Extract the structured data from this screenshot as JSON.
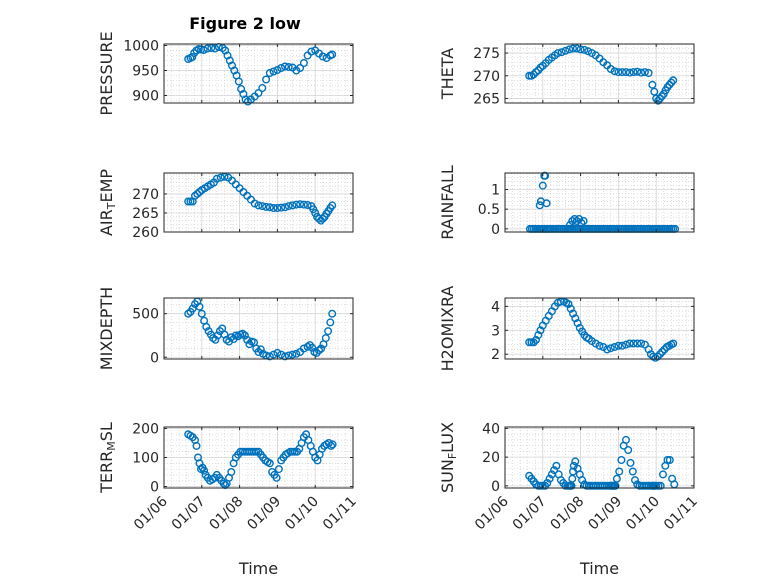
{
  "figure": {
    "title": "Figure 2 low",
    "marker_color": "#0072BD",
    "x_tick_labels": [
      "01/06",
      "01/07",
      "01/08",
      "01/09",
      "01/10",
      "01/11"
    ]
  },
  "chart_data": [
    {
      "type": "scatter",
      "ylabel": "PRESSURE",
      "xlabel": "",
      "title": "Figure 2 low",
      "x_range": [
        0,
        5
      ],
      "ylim": [
        885,
        1003
      ],
      "y_ticks": [
        900,
        950,
        1000
      ],
      "grid": true,
      "x": [
        0.64,
        0.7,
        0.75,
        0.8,
        0.86,
        0.92,
        0.98,
        1.05,
        1.15,
        1.25,
        1.35,
        1.45,
        1.55,
        1.62,
        1.68,
        1.74,
        1.8,
        1.86,
        1.92,
        1.98,
        2.04,
        2.1,
        2.16,
        2.22,
        2.3,
        2.4,
        2.5,
        2.6,
        2.7,
        2.8,
        2.9,
        3.0,
        3.1,
        3.2,
        3.3,
        3.4,
        3.5,
        3.6,
        3.7,
        3.8,
        3.9,
        4.0,
        4.1,
        4.2,
        4.3,
        4.4,
        4.45
      ],
      "y": [
        973,
        975,
        977,
        985,
        990,
        993,
        992,
        991,
        994,
        995,
        994,
        997,
        995,
        990,
        980,
        970,
        960,
        950,
        940,
        928,
        913,
        903,
        892,
        888,
        892,
        898,
        905,
        915,
        932,
        945,
        948,
        951,
        955,
        958,
        957,
        956,
        950,
        955,
        965,
        980,
        988,
        990,
        984,
        978,
        975,
        980,
        982
      ]
    },
    {
      "type": "scatter",
      "ylabel": "THETA",
      "xlabel": "",
      "x_range": [
        0,
        5
      ],
      "ylim": [
        264,
        277
      ],
      "y_ticks": [
        265,
        270,
        275
      ],
      "grid": true,
      "x": [
        0.64,
        0.7,
        0.76,
        0.82,
        0.88,
        0.94,
        1.0,
        1.08,
        1.16,
        1.24,
        1.32,
        1.4,
        1.5,
        1.6,
        1.7,
        1.8,
        1.9,
        2.0,
        2.1,
        2.2,
        2.3,
        2.4,
        2.5,
        2.6,
        2.7,
        2.8,
        2.9,
        3.0,
        3.1,
        3.2,
        3.3,
        3.4,
        3.5,
        3.6,
        3.7,
        3.8,
        3.9,
        3.95,
        4.0,
        4.05,
        4.1,
        4.15,
        4.2,
        4.25,
        4.3,
        4.35,
        4.4,
        4.45
      ],
      "y": [
        270,
        270,
        270.3,
        270.8,
        271.2,
        271.8,
        272.2,
        272.8,
        273.5,
        274,
        274.5,
        275,
        275.2,
        275.5,
        275.8,
        276,
        276,
        275.8,
        275.7,
        275.4,
        275,
        274.5,
        273.8,
        273,
        272.3,
        271.5,
        271,
        270.8,
        270.8,
        270.8,
        270.7,
        270.8,
        270.9,
        270.7,
        270.8,
        270.6,
        268,
        266.5,
        265,
        264.5,
        265,
        265.5,
        266,
        266.8,
        267.5,
        268,
        268.5,
        269
      ]
    },
    {
      "type": "scatter",
      "ylabel": "AIR_TEMP",
      "xlabel": "",
      "x_range": [
        0,
        5
      ],
      "ylim": [
        260,
        275.5
      ],
      "y_ticks": [
        260,
        265,
        270
      ],
      "grid": true,
      "x": [
        0.64,
        0.7,
        0.76,
        0.82,
        0.88,
        0.94,
        1.0,
        1.08,
        1.16,
        1.24,
        1.32,
        1.4,
        1.5,
        1.6,
        1.7,
        1.8,
        1.9,
        2.0,
        2.1,
        2.2,
        2.3,
        2.4,
        2.5,
        2.6,
        2.7,
        2.8,
        2.9,
        3.0,
        3.1,
        3.2,
        3.3,
        3.4,
        3.5,
        3.6,
        3.7,
        3.8,
        3.9,
        3.95,
        4.0,
        4.05,
        4.1,
        4.15,
        4.2,
        4.25,
        4.3,
        4.35,
        4.4,
        4.45
      ],
      "y": [
        268,
        268,
        268,
        269.5,
        270,
        270.5,
        271,
        271.5,
        272,
        272.5,
        273,
        274,
        274.3,
        274.5,
        274.3,
        273.5,
        272.5,
        271.5,
        270.5,
        269.5,
        268.5,
        267.5,
        267,
        266.8,
        266.6,
        266.5,
        266.3,
        266.3,
        266.4,
        266.5,
        266.8,
        267,
        267.2,
        267.3,
        267.2,
        267.1,
        266.8,
        266,
        265,
        264,
        263.5,
        263,
        263.5,
        264,
        264.8,
        265.5,
        266.3,
        267
      ]
    },
    {
      "type": "scatter",
      "ylabel": "RAINFALL",
      "xlabel": "",
      "x_range": [
        0,
        5
      ],
      "ylim": [
        -0.08,
        1.42
      ],
      "y_ticks": [
        0,
        0.5,
        1
      ],
      "y_tick_labels": [
        "0",
        "0.5",
        "1"
      ],
      "grid": true,
      "x": [
        0.66,
        0.71,
        0.76,
        0.81,
        0.86,
        0.91,
        0.96,
        1.0,
        1.04,
        1.08,
        1.12,
        1.16,
        1.2,
        1.25,
        1.3,
        1.35,
        1.4,
        1.45,
        1.5,
        1.55,
        1.6,
        1.65,
        1.7,
        1.75,
        1.8,
        1.85,
        1.9,
        1.95,
        2.0,
        2.05,
        2.1,
        2.15,
        2.2,
        2.25,
        2.3,
        2.35,
        2.4,
        2.45,
        2.5,
        2.55,
        2.6,
        2.65,
        2.7,
        2.75,
        2.8,
        2.85,
        2.9,
        2.95,
        3.0,
        3.05,
        3.1,
        3.15,
        3.2,
        3.25,
        3.3,
        3.35,
        3.4,
        3.45,
        3.5,
        3.55,
        3.6,
        3.65,
        3.7,
        3.75,
        3.8,
        3.85,
        3.9,
        3.95,
        4.0,
        4.05,
        4.1,
        4.15,
        4.2,
        4.25,
        4.3,
        4.35,
        4.4,
        4.45,
        4.5,
        0.92,
        0.95,
        1.0,
        1.04,
        1.06,
        1.1,
        1.72,
        1.78,
        1.84,
        1.9,
        1.96,
        2.02,
        2.08
      ],
      "y": [
        0,
        0,
        0,
        0,
        0,
        0,
        0,
        0,
        0,
        0,
        0,
        0,
        0,
        0,
        0,
        0,
        0,
        0,
        0,
        0,
        0,
        0,
        0,
        0,
        0,
        0,
        0,
        0,
        0,
        0,
        0,
        0,
        0,
        0,
        0,
        0,
        0,
        0,
        0,
        0,
        0,
        0,
        0,
        0,
        0,
        0,
        0,
        0,
        0,
        0,
        0,
        0,
        0,
        0,
        0,
        0,
        0,
        0,
        0,
        0,
        0,
        0,
        0,
        0,
        0,
        0,
        0,
        0,
        0,
        0,
        0,
        0,
        0,
        0,
        0,
        0,
        0,
        0,
        0,
        0.6,
        0.7,
        1.1,
        1.35,
        1.35,
        0.65,
        0.1,
        0.2,
        0.25,
        0.2,
        0.25,
        0.15,
        0.2
      ]
    },
    {
      "type": "scatter",
      "ylabel": "MIXDEPTH",
      "xlabel": "",
      "x_range": [
        0,
        5
      ],
      "ylim": [
        -20,
        680
      ],
      "y_ticks": [
        0,
        500
      ],
      "grid": true,
      "x": [
        0.64,
        0.7,
        0.76,
        0.82,
        0.88,
        0.94,
        1.0,
        1.06,
        1.12,
        1.18,
        1.24,
        1.3,
        1.36,
        1.42,
        1.48,
        1.54,
        1.6,
        1.66,
        1.72,
        1.78,
        1.84,
        1.9,
        1.96,
        2.02,
        2.08,
        2.14,
        2.2,
        2.26,
        2.32,
        2.38,
        2.44,
        2.5,
        2.56,
        2.62,
        2.7,
        2.8,
        2.9,
        3.0,
        3.1,
        3.2,
        3.3,
        3.4,
        3.5,
        3.6,
        3.7,
        3.8,
        3.86,
        3.92,
        3.98,
        4.04,
        4.1,
        4.16,
        4.22,
        4.28,
        4.34,
        4.4,
        4.45
      ],
      "y": [
        500,
        520,
        560,
        610,
        640,
        580,
        500,
        420,
        350,
        300,
        260,
        220,
        200,
        250,
        300,
        330,
        260,
        200,
        180,
        230,
        210,
        250,
        240,
        260,
        270,
        250,
        200,
        150,
        180,
        170,
        100,
        60,
        90,
        40,
        20,
        10,
        30,
        50,
        30,
        10,
        20,
        30,
        40,
        60,
        100,
        120,
        140,
        110,
        60,
        50,
        80,
        100,
        150,
        220,
        300,
        400,
        500
      ]
    },
    {
      "type": "scatter",
      "ylabel": "H2OMIXRA",
      "xlabel": "",
      "x_range": [
        0,
        5
      ],
      "ylim": [
        1.8,
        4.35
      ],
      "y_ticks": [
        2,
        3,
        4
      ],
      "grid": true,
      "x": [
        0.64,
        0.7,
        0.76,
        0.82,
        0.88,
        0.94,
        1.0,
        1.08,
        1.16,
        1.24,
        1.32,
        1.4,
        1.48,
        1.56,
        1.62,
        1.68,
        1.74,
        1.8,
        1.86,
        1.92,
        1.98,
        2.04,
        2.1,
        2.16,
        2.22,
        2.3,
        2.4,
        2.5,
        2.6,
        2.7,
        2.8,
        2.9,
        3.0,
        3.1,
        3.2,
        3.3,
        3.4,
        3.5,
        3.6,
        3.7,
        3.8,
        3.86,
        3.92,
        3.98,
        4.04,
        4.1,
        4.16,
        4.22,
        4.28,
        4.34,
        4.4,
        4.45
      ],
      "y": [
        2.5,
        2.5,
        2.5,
        2.6,
        2.8,
        3.0,
        3.2,
        3.4,
        3.6,
        3.8,
        4.0,
        4.15,
        4.2,
        4.2,
        4.15,
        4.1,
        3.9,
        3.7,
        3.5,
        3.3,
        3.1,
        2.95,
        2.8,
        2.7,
        2.65,
        2.55,
        2.45,
        2.35,
        2.3,
        2.2,
        2.25,
        2.3,
        2.35,
        2.35,
        2.4,
        2.45,
        2.45,
        2.45,
        2.45,
        2.4,
        2.2,
        2.0,
        1.9,
        1.85,
        1.9,
        2.0,
        2.1,
        2.2,
        2.3,
        2.35,
        2.4,
        2.45
      ]
    },
    {
      "type": "scatter",
      "ylabel": "TERR_MSL",
      "xlabel": "Time",
      "x_range": [
        0,
        5
      ],
      "ylim": [
        -5,
        205
      ],
      "y_ticks": [
        0,
        100,
        200
      ],
      "grid": true,
      "x": [
        0.64,
        0.7,
        0.76,
        0.82,
        0.86,
        0.9,
        0.94,
        0.98,
        1.02,
        1.06,
        1.1,
        1.16,
        1.22,
        1.28,
        1.34,
        1.4,
        1.46,
        1.52,
        1.58,
        1.62,
        1.66,
        1.72,
        1.78,
        1.84,
        1.9,
        1.96,
        2.02,
        2.08,
        2.14,
        2.2,
        2.26,
        2.32,
        2.38,
        2.44,
        2.5,
        2.56,
        2.62,
        2.68,
        2.74,
        2.8,
        2.86,
        2.92,
        2.98,
        3.04,
        3.1,
        3.16,
        3.22,
        3.28,
        3.34,
        3.4,
        3.46,
        3.52,
        3.58,
        3.64,
        3.7,
        3.76,
        3.82,
        3.88,
        3.94,
        4.0,
        4.06,
        4.12,
        4.18,
        4.24,
        4.3,
        4.36,
        4.42,
        4.46
      ],
      "y": [
        180,
        175,
        170,
        160,
        140,
        100,
        80,
        60,
        65,
        55,
        40,
        30,
        20,
        25,
        30,
        40,
        30,
        20,
        10,
        5,
        10,
        30,
        50,
        80,
        100,
        110,
        120,
        120,
        120,
        120,
        120,
        120,
        120,
        120,
        120,
        110,
        100,
        90,
        85,
        80,
        50,
        40,
        30,
        60,
        90,
        100,
        110,
        115,
        120,
        120,
        120,
        120,
        130,
        150,
        170,
        180,
        160,
        140,
        120,
        100,
        90,
        110,
        130,
        140,
        145,
        150,
        140,
        145
      ]
    },
    {
      "type": "scatter",
      "ylabel": "SUN_FLUX",
      "xlabel": "Time",
      "x_range": [
        0,
        5
      ],
      "ylim": [
        -1.5,
        41
      ],
      "y_ticks": [
        0,
        20,
        40
      ],
      "grid": true,
      "x": [
        0.64,
        0.7,
        0.76,
        0.82,
        0.88,
        0.94,
        1.0,
        1.06,
        1.12,
        1.18,
        1.24,
        1.3,
        1.36,
        1.42,
        1.48,
        1.54,
        1.6,
        1.66,
        1.7,
        1.72,
        1.74,
        1.76,
        1.78,
        1.8,
        1.82,
        1.86,
        1.92,
        1.98,
        2.04,
        2.1,
        2.16,
        2.22,
        2.28,
        2.34,
        2.4,
        2.46,
        2.52,
        2.58,
        2.64,
        2.7,
        2.76,
        2.8,
        2.82,
        2.84,
        2.86,
        2.88,
        2.9,
        2.92,
        2.96,
        3.02,
        3.08,
        3.14,
        3.2,
        3.26,
        3.32,
        3.38,
        3.44,
        3.5,
        3.56,
        3.62,
        3.68,
        3.74,
        3.8,
        3.86,
        3.9,
        3.92,
        3.94,
        3.96,
        4.0,
        4.06,
        4.12,
        4.18,
        4.24,
        4.3,
        4.36,
        4.42,
        4.48
      ],
      "y": [
        7,
        5,
        3,
        1,
        0,
        0,
        0,
        0,
        2,
        5,
        8,
        11,
        14,
        8,
        4,
        2,
        0,
        0,
        0,
        0,
        0,
        0,
        5,
        10,
        14,
        17,
        12,
        8,
        4,
        1,
        0,
        0,
        0,
        0,
        0,
        0,
        0,
        0,
        0,
        0,
        0,
        0,
        0,
        0,
        0,
        0,
        0,
        0,
        5,
        10,
        18,
        28,
        32,
        25,
        16,
        10,
        4,
        1,
        0,
        0,
        0,
        0,
        0,
        0,
        0,
        0,
        0,
        0,
        0,
        0,
        0,
        8,
        14,
        18,
        18,
        5,
        1
      ]
    }
  ]
}
